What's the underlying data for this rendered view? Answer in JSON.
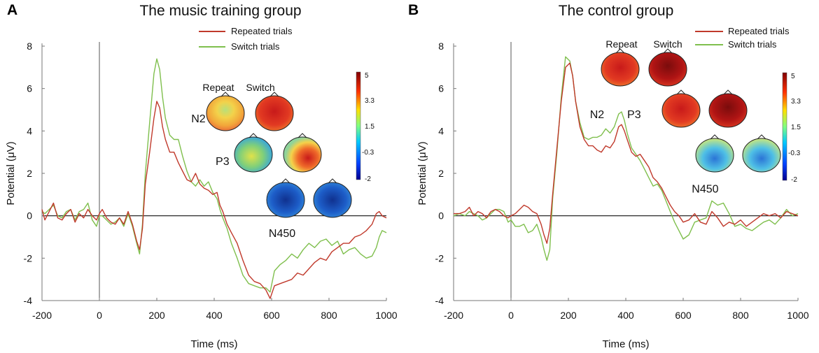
{
  "chart_data": [
    {
      "panel": "A",
      "type": "line",
      "title": "The music training group",
      "xlabel": "Time (ms)",
      "ylabel": "Potential (μV)",
      "xlim": [
        -200,
        1000
      ],
      "ylim": [
        -4,
        8
      ],
      "xticks": [
        "-200",
        "0",
        "200",
        "400",
        "600",
        "800",
        "1000"
      ],
      "yticks": [
        "-4",
        "-2",
        "0",
        "2",
        "4",
        "6",
        "8"
      ],
      "legend": {
        "placement": "top-center",
        "entries": [
          "Repeated trials",
          "Switch trials"
        ]
      },
      "series": [
        {
          "name": "Repeated trials",
          "color": "#c0392b",
          "x": [
            -200,
            -190,
            -175,
            -160,
            -145,
            -130,
            -115,
            -100,
            -85,
            -70,
            -55,
            -40,
            -25,
            -10,
            0,
            10,
            25,
            40,
            55,
            70,
            85,
            100,
            115,
            130,
            140,
            150,
            160,
            175,
            190,
            200,
            210,
            220,
            230,
            245,
            260,
            275,
            290,
            305,
            320,
            335,
            350,
            365,
            380,
            395,
            410,
            420,
            430,
            445,
            460,
            480,
            500,
            520,
            540,
            560,
            580,
            595,
            610,
            630,
            650,
            670,
            690,
            710,
            730,
            750,
            770,
            790,
            810,
            830,
            850,
            870,
            890,
            910,
            930,
            950,
            965,
            975,
            985,
            1000
          ],
          "y": [
            0.3,
            -0.2,
            0.2,
            0.6,
            -0.1,
            -0.2,
            0.1,
            0.3,
            -0.3,
            0.1,
            -0.1,
            0.3,
            0.0,
            -0.2,
            0.1,
            0.3,
            -0.1,
            -0.3,
            -0.4,
            -0.1,
            -0.4,
            0.2,
            -0.4,
            -1.2,
            -1.6,
            -0.6,
            1.5,
            3.0,
            4.6,
            5.4,
            5.1,
            4.2,
            3.6,
            3.0,
            3.0,
            2.5,
            2.1,
            1.7,
            1.6,
            2.0,
            1.5,
            1.3,
            1.2,
            1.0,
            1.1,
            0.5,
            0.2,
            -0.4,
            -0.8,
            -1.3,
            -2.1,
            -2.8,
            -3.1,
            -3.2,
            -3.5,
            -3.9,
            -3.3,
            -3.2,
            -3.1,
            -3.0,
            -2.7,
            -2.8,
            -2.5,
            -2.2,
            -2.0,
            -2.1,
            -1.7,
            -1.5,
            -1.3,
            -1.3,
            -1.0,
            -0.9,
            -0.7,
            -0.4,
            0.1,
            0.2,
            0.0,
            -0.1
          ]
        },
        {
          "name": "Switch trials",
          "color": "#7fbf4d",
          "x": [
            -200,
            -190,
            -175,
            -160,
            -145,
            -130,
            -115,
            -100,
            -85,
            -70,
            -55,
            -40,
            -25,
            -10,
            0,
            10,
            25,
            40,
            55,
            70,
            85,
            100,
            115,
            130,
            140,
            150,
            160,
            175,
            190,
            200,
            210,
            220,
            230,
            245,
            260,
            275,
            290,
            305,
            320,
            335,
            350,
            365,
            380,
            395,
            410,
            420,
            430,
            445,
            460,
            480,
            500,
            520,
            540,
            560,
            580,
            595,
            610,
            630,
            650,
            670,
            690,
            710,
            730,
            750,
            770,
            790,
            810,
            830,
            850,
            870,
            890,
            910,
            930,
            950,
            965,
            975,
            985,
            1000
          ],
          "y": [
            0.2,
            0.1,
            0.3,
            0.5,
            0.0,
            -0.1,
            0.2,
            0.3,
            -0.2,
            0.2,
            0.3,
            0.6,
            -0.2,
            -0.5,
            0.0,
            0.0,
            -0.2,
            -0.4,
            -0.3,
            -0.1,
            -0.5,
            0.1,
            -0.5,
            -1.3,
            -1.8,
            -0.4,
            2.0,
            4.4,
            6.7,
            7.4,
            6.9,
            5.6,
            4.6,
            3.8,
            3.6,
            3.6,
            2.8,
            2.1,
            1.6,
            1.4,
            1.7,
            1.4,
            1.6,
            1.1,
            0.8,
            0.3,
            -0.1,
            -0.6,
            -1.3,
            -2.0,
            -2.8,
            -3.2,
            -3.3,
            -3.4,
            -3.4,
            -3.6,
            -2.6,
            -2.3,
            -2.1,
            -1.8,
            -2.0,
            -1.6,
            -1.3,
            -1.5,
            -1.2,
            -1.1,
            -1.4,
            -1.2,
            -1.8,
            -1.6,
            -1.5,
            -1.8,
            -2.0,
            -1.9,
            -1.5,
            -1.0,
            -0.7,
            -0.8
          ]
        }
      ],
      "annotations": [
        {
          "text": "N2",
          "x": 320,
          "y": 4.4
        },
        {
          "text": "P3",
          "x": 405,
          "y": 2.4
        },
        {
          "text": "N450",
          "x": 590,
          "y": -1.0
        }
      ],
      "topomaps": {
        "column_labels": [
          "Repeat",
          "Switch"
        ],
        "rows": [
          {
            "component": "N2",
            "repeat": "warm-center",
            "switch": "red"
          },
          {
            "component": "P3",
            "repeat": "mixed",
            "switch": "right-red"
          },
          {
            "component": "N450",
            "repeat": "blue",
            "switch": "blue"
          }
        ],
        "colorbar_ticks": [
          "5",
          "3.3",
          "1.5",
          "-0.3",
          "-2"
        ]
      }
    },
    {
      "panel": "B",
      "type": "line",
      "title": "The control group",
      "xlabel": "Time (ms)",
      "ylabel": "Potential (μV)",
      "xlim": [
        -200,
        1000
      ],
      "ylim": [
        -4,
        8
      ],
      "xticks": [
        "-200",
        "0",
        "200",
        "400",
        "600",
        "800",
        "1000"
      ],
      "yticks": [
        "-4",
        "-2",
        "0",
        "2",
        "4",
        "6",
        "8"
      ],
      "legend": {
        "placement": "top-right",
        "entries": [
          "Repeated trials",
          "Switch trials"
        ]
      },
      "series": [
        {
          "name": "Repeated trials",
          "color": "#c0392b",
          "x": [
            -200,
            -180,
            -160,
            -145,
            -130,
            -115,
            -100,
            -85,
            -70,
            -55,
            -40,
            -25,
            -10,
            0,
            15,
            30,
            45,
            60,
            75,
            90,
            105,
            115,
            125,
            135,
            145,
            160,
            175,
            190,
            205,
            215,
            225,
            240,
            255,
            270,
            285,
            300,
            315,
            330,
            345,
            360,
            375,
            385,
            395,
            405,
            420,
            435,
            450,
            465,
            480,
            495,
            510,
            525,
            540,
            555,
            570,
            585,
            600,
            620,
            640,
            660,
            680,
            700,
            720,
            740,
            760,
            780,
            800,
            820,
            840,
            860,
            880,
            900,
            920,
            940,
            960,
            980,
            1000
          ],
          "y": [
            0.1,
            0.1,
            0.2,
            0.4,
            0.0,
            0.2,
            0.1,
            -0.1,
            0.2,
            0.3,
            0.2,
            0.0,
            -0.1,
            0.0,
            0.1,
            0.3,
            0.5,
            0.4,
            0.2,
            0.1,
            -0.4,
            -0.9,
            -1.3,
            -0.6,
            1.0,
            3.2,
            5.4,
            7.0,
            7.2,
            6.6,
            5.4,
            4.2,
            3.6,
            3.3,
            3.3,
            3.1,
            3.0,
            3.3,
            3.2,
            3.5,
            4.2,
            4.3,
            4.0,
            3.6,
            3.0,
            2.8,
            2.9,
            2.6,
            2.3,
            1.8,
            1.6,
            1.3,
            0.9,
            0.5,
            0.2,
            0.0,
            -0.3,
            -0.2,
            0.1,
            -0.3,
            -0.4,
            0.2,
            -0.1,
            -0.5,
            -0.3,
            -0.4,
            -0.2,
            -0.5,
            -0.3,
            -0.1,
            0.1,
            0.0,
            0.1,
            -0.1,
            0.2,
            0.1,
            0.0
          ]
        },
        {
          "name": "Switch trials",
          "color": "#7fbf4d",
          "x": [
            -200,
            -180,
            -160,
            -145,
            -130,
            -115,
            -100,
            -85,
            -70,
            -55,
            -40,
            -25,
            -10,
            0,
            15,
            30,
            45,
            60,
            75,
            90,
            105,
            115,
            125,
            135,
            145,
            160,
            175,
            190,
            205,
            215,
            225,
            240,
            255,
            270,
            285,
            300,
            315,
            330,
            345,
            360,
            375,
            385,
            395,
            405,
            420,
            435,
            450,
            465,
            480,
            495,
            510,
            525,
            540,
            555,
            570,
            585,
            600,
            620,
            640,
            660,
            680,
            700,
            720,
            740,
            760,
            780,
            800,
            820,
            840,
            860,
            880,
            900,
            920,
            940,
            960,
            980,
            1000
          ],
          "y": [
            0.0,
            0.1,
            0.0,
            0.2,
            0.1,
            0.0,
            -0.2,
            -0.1,
            0.1,
            0.3,
            0.3,
            0.2,
            -0.3,
            -0.2,
            -0.5,
            -0.5,
            -0.4,
            -0.8,
            -0.7,
            -0.4,
            -1.0,
            -1.6,
            -2.1,
            -1.6,
            0.8,
            3.0,
            5.6,
            7.5,
            7.3,
            6.6,
            5.4,
            4.4,
            3.7,
            3.6,
            3.7,
            3.7,
            3.8,
            4.1,
            3.9,
            4.2,
            4.8,
            4.9,
            4.5,
            3.9,
            3.2,
            2.9,
            2.6,
            2.2,
            1.8,
            1.4,
            1.5,
            1.2,
            0.7,
            0.2,
            -0.3,
            -0.7,
            -1.1,
            -0.9,
            -0.3,
            -0.2,
            -0.1,
            0.7,
            0.5,
            0.6,
            0.1,
            -0.5,
            -0.4,
            -0.6,
            -0.7,
            -0.5,
            -0.3,
            -0.2,
            -0.4,
            -0.1,
            0.3,
            0.0,
            0.1
          ]
        }
      ],
      "annotations": [
        {
          "text": "N2",
          "x": 275,
          "y": 4.6
        },
        {
          "text": "P3",
          "x": 405,
          "y": 4.6
        },
        {
          "text": "N450",
          "x": 630,
          "y": 1.1
        }
      ],
      "topomaps": {
        "column_labels": [
          "Repeat",
          "Switch"
        ],
        "rows": [
          {
            "component": "N2",
            "repeat": "red",
            "switch": "red"
          },
          {
            "component": "P3",
            "repeat": "red",
            "switch": "dark-red"
          },
          {
            "component": "N450",
            "repeat": "mixed-cool",
            "switch": "mixed-cool"
          }
        ],
        "colorbar_ticks": [
          "5",
          "3.3",
          "1.5",
          "-0.3",
          "-2"
        ]
      }
    }
  ]
}
